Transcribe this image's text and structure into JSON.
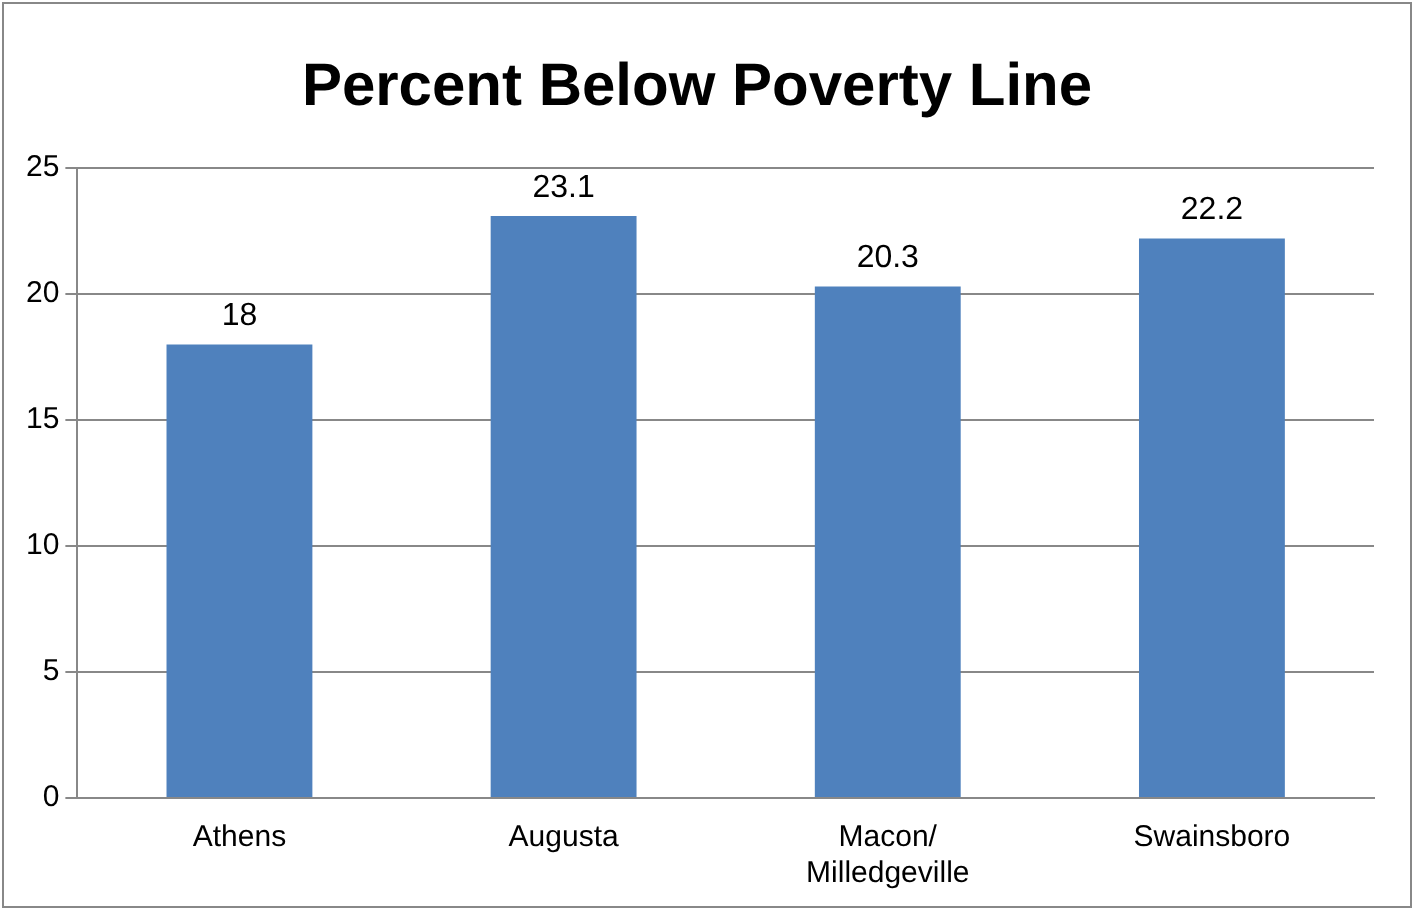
{
  "chart_data": {
    "type": "bar",
    "title": "Percent Below Poverty Line",
    "categories": [
      "Athens",
      "Augusta",
      "Macon/ Milledgeville",
      "Swainsboro"
    ],
    "values": [
      18,
      23.1,
      20.3,
      22.2
    ],
    "color": "#4f81bd",
    "ylim": [
      0,
      25
    ],
    "yticks": [
      0,
      5,
      10,
      15,
      20,
      25
    ],
    "grid": "y",
    "legend": false,
    "data_labels": true
  }
}
